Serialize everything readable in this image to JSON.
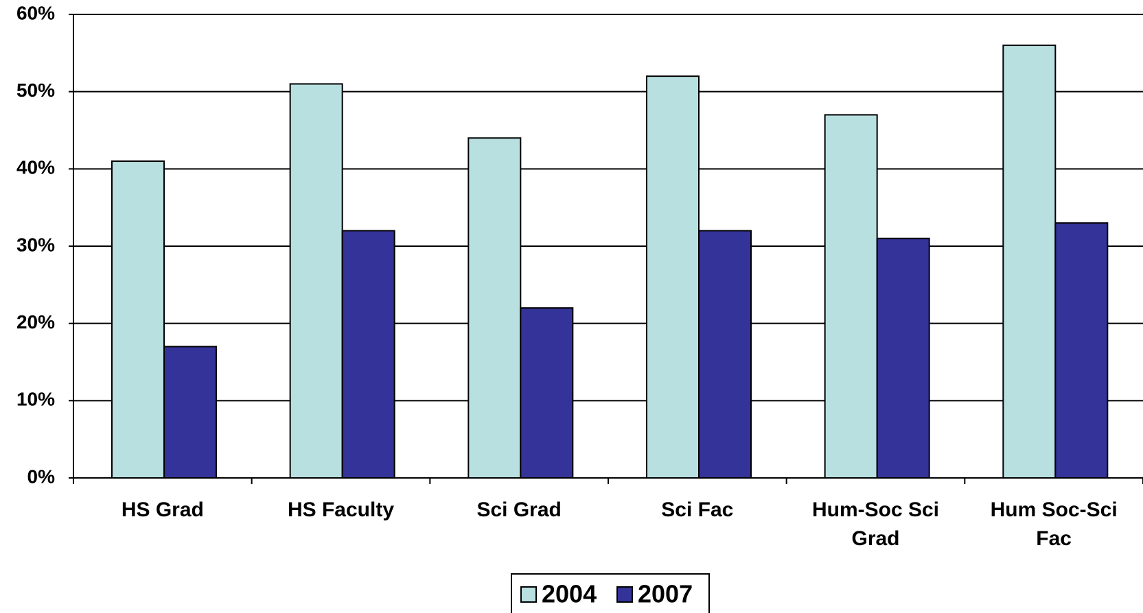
{
  "chart_data": {
    "type": "bar",
    "categories": [
      "HS Grad",
      "HS Faculty",
      "Sci Grad",
      "Sci Fac",
      "Hum-Soc Sci Grad",
      "Hum Soc-Sci Fac"
    ],
    "series": [
      {
        "name": "2004",
        "color": "#b9e0e1",
        "values": [
          41,
          51,
          44,
          52,
          47,
          56
        ]
      },
      {
        "name": "2007",
        "color": "#343399",
        "values": [
          17,
          32,
          22,
          32,
          31,
          33
        ]
      }
    ],
    "ylim": [
      0,
      60
    ],
    "yticks": [
      {
        "value": 0,
        "label": "0%"
      },
      {
        "value": 10,
        "label": "10%"
      },
      {
        "value": 20,
        "label": "20%"
      },
      {
        "value": 30,
        "label": "30%"
      },
      {
        "value": 40,
        "label": "40%"
      },
      {
        "value": 50,
        "label": "50%"
      },
      {
        "value": 60,
        "label": "60%"
      }
    ],
    "grid": true,
    "legend": "bottom"
  }
}
